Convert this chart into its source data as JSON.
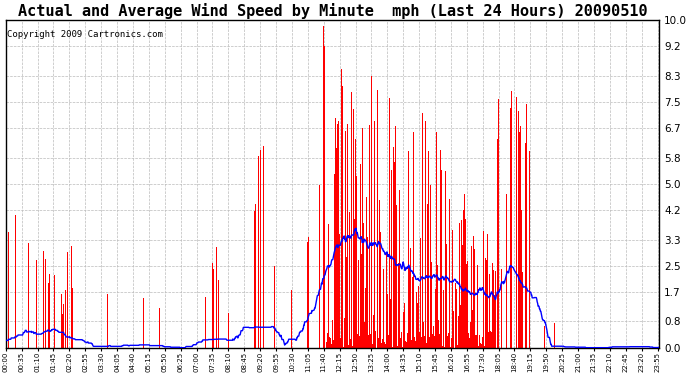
{
  "title": "Actual and Average Wind Speed by Minute  mph (Last 24 Hours) 20090510",
  "copyright": "Copyright 2009 Cartronics.com",
  "yticks": [
    0.0,
    0.8,
    1.7,
    2.5,
    3.3,
    4.2,
    5.0,
    5.8,
    6.7,
    7.5,
    8.3,
    9.2,
    10.0
  ],
  "ymax": 10.0,
  "ymin": 0.0,
  "bar_color": "#FF0000",
  "line_color": "#0000FF",
  "bg_color": "#FFFFFF",
  "grid_color": "#BBBBBB",
  "title_fontsize": 11,
  "copyright_fontsize": 6.5
}
